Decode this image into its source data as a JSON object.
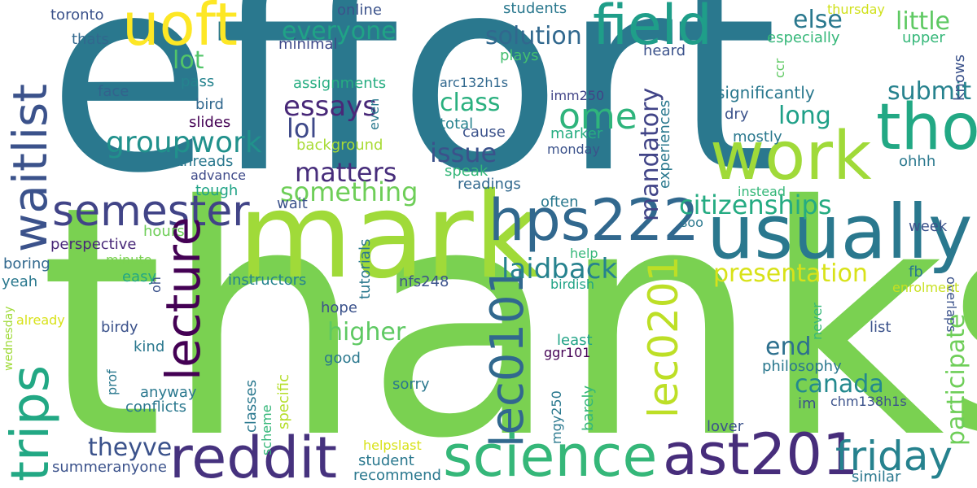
{
  "words": [
    {
      "text": "effort",
      "color": "#2a788e"
    },
    {
      "text": "thanks",
      "color": "#7ad151"
    },
    {
      "text": "mark",
      "color": "#a0da39"
    },
    {
      "text": "waitlist",
      "color": "#3b528b"
    },
    {
      "text": "uoft",
      "color": "#fde725"
    },
    {
      "text": "field",
      "color": "#1f9e89"
    },
    {
      "text": "tho",
      "color": "#22a884"
    },
    {
      "text": "work",
      "color": "#a0da39"
    },
    {
      "text": "usually",
      "color": "#2a788e"
    },
    {
      "text": "hps222",
      "color": "#31688e"
    },
    {
      "text": "semester",
      "color": "#414487"
    },
    {
      "text": "trips",
      "color": "#22a884"
    },
    {
      "text": "lecture",
      "color": "#440154"
    },
    {
      "text": "reddit",
      "color": "#46327e"
    },
    {
      "text": "science",
      "color": "#35b779"
    },
    {
      "text": "ast201",
      "color": "#472d7b"
    },
    {
      "text": "friday",
      "color": "#26828e"
    },
    {
      "text": "lec0101",
      "color": "#31688e"
    },
    {
      "text": "lec0201",
      "color": "#bddf26"
    },
    {
      "text": "citizenships",
      "color": "#25ab82"
    },
    {
      "text": "presentation",
      "color": "#d8e219"
    },
    {
      "text": "laidback",
      "color": "#26828e"
    },
    {
      "text": "groupwork",
      "color": "#21918c"
    },
    {
      "text": "essays",
      "color": "#482878"
    },
    {
      "text": "lol",
      "color": "#3e4989"
    },
    {
      "text": "matters",
      "color": "#472d7b"
    },
    {
      "text": "something",
      "color": "#6ece58"
    },
    {
      "text": "issue",
      "color": "#3b528b"
    },
    {
      "text": "class",
      "color": "#2ab07f"
    },
    {
      "text": "ome",
      "color": "#2fb47c"
    },
    {
      "text": "mandatory",
      "color": "#414487"
    },
    {
      "text": "solution",
      "color": "#31688e"
    },
    {
      "text": "everyone",
      "color": "#20a386"
    },
    {
      "text": "else",
      "color": "#2a788e"
    },
    {
      "text": "little",
      "color": "#5ec962"
    },
    {
      "text": "long",
      "color": "#1fa088"
    },
    {
      "text": "submit",
      "color": "#26828e"
    },
    {
      "text": "higher",
      "color": "#5ec962"
    },
    {
      "text": "end",
      "color": "#2d708e"
    },
    {
      "text": "canada",
      "color": "#23898e"
    },
    {
      "text": "participate",
      "color": "#6ece58"
    },
    {
      "text": "theyve",
      "color": "#3b528b"
    },
    {
      "text": "lot",
      "color": "#52c569"
    },
    {
      "text": "online",
      "color": "#3b528b"
    },
    {
      "text": "students",
      "color": "#2a788e"
    },
    {
      "text": "thursday",
      "color": "#d0e11c"
    },
    {
      "text": "toronto",
      "color": "#3b528b"
    },
    {
      "text": "thats",
      "color": "#31688e"
    },
    {
      "text": "minimal",
      "color": "#3e4989"
    },
    {
      "text": "especially",
      "color": "#35b779"
    },
    {
      "text": "upper",
      "color": "#35b779"
    },
    {
      "text": "plays",
      "color": "#44bf70"
    },
    {
      "text": "heard",
      "color": "#3b528b"
    },
    {
      "text": "ccr",
      "color": "#5ec962"
    },
    {
      "text": "knows",
      "color": "#3b528b"
    },
    {
      "text": "assignments",
      "color": "#26ad81"
    },
    {
      "text": "arc132h1s",
      "color": "#31688e"
    },
    {
      "text": "imm250",
      "color": "#414487"
    },
    {
      "text": "significantly",
      "color": "#2a788e"
    },
    {
      "text": "pass",
      "color": "#25838e"
    },
    {
      "text": "face",
      "color": "#33638d"
    },
    {
      "text": "bird",
      "color": "#31688e"
    },
    {
      "text": "slides",
      "color": "#440154"
    },
    {
      "text": "threads",
      "color": "#2a788e"
    },
    {
      "text": "advance",
      "color": "#3e4989"
    },
    {
      "text": "tough",
      "color": "#20a386"
    },
    {
      "text": "background",
      "color": "#a8db34"
    },
    {
      "text": "even",
      "color": "#2a788e"
    },
    {
      "text": "total",
      "color": "#26828e"
    },
    {
      "text": "cause",
      "color": "#3b528b"
    },
    {
      "text": "marker",
      "color": "#26ad81"
    },
    {
      "text": "monday",
      "color": "#3b528b"
    },
    {
      "text": "experiences",
      "color": "#2a788e"
    },
    {
      "text": "dry",
      "color": "#3b528b"
    },
    {
      "text": "mostly",
      "color": "#2a788e"
    },
    {
      "text": "ohhh",
      "color": "#2a788e"
    },
    {
      "text": "speak",
      "color": "#35b779"
    },
    {
      "text": "readings",
      "color": "#31688e"
    },
    {
      "text": "often",
      "color": "#2a788e"
    },
    {
      "text": "wait",
      "color": "#3b528b"
    },
    {
      "text": "hours",
      "color": "#6ece58"
    },
    {
      "text": "perspective",
      "color": "#482878"
    },
    {
      "text": "minute",
      "color": "#7ad151"
    },
    {
      "text": "boring",
      "color": "#31688e"
    },
    {
      "text": "easy",
      "color": "#22a884"
    },
    {
      "text": "yeah",
      "color": "#2a788e"
    },
    {
      "text": "instead",
      "color": "#35b779"
    },
    {
      "text": "week",
      "color": "#3b528b"
    },
    {
      "text": "overlaps",
      "color": "#3b528b"
    },
    {
      "text": "soo",
      "color": "#2a788e"
    },
    {
      "text": "fb",
      "color": "#2a788e"
    },
    {
      "text": "enrolment",
      "color": "#c8e020"
    },
    {
      "text": "help",
      "color": "#35b779"
    },
    {
      "text": "birdish",
      "color": "#20a386"
    },
    {
      "text": "instructors",
      "color": "#25838e"
    },
    {
      "text": "tutorials",
      "color": "#2a788e"
    },
    {
      "text": "oh",
      "color": "#3b528b"
    },
    {
      "text": "nfs248",
      "color": "#3b528b"
    },
    {
      "text": "hope",
      "color": "#3b528b"
    },
    {
      "text": "already",
      "color": "#d8e219"
    },
    {
      "text": "wednesday",
      "color": "#a0da39"
    },
    {
      "text": "birdy",
      "color": "#3b528b"
    },
    {
      "text": "kind",
      "color": "#2a788e"
    },
    {
      "text": "prof",
      "color": "#2a788e"
    },
    {
      "text": "anyway",
      "color": "#2a788e"
    },
    {
      "text": "conflicts",
      "color": "#2a788e"
    },
    {
      "text": "good",
      "color": "#2a788e"
    },
    {
      "text": "least",
      "color": "#20a386"
    },
    {
      "text": "ggr101",
      "color": "#440154"
    },
    {
      "text": "never",
      "color": "#35b779"
    },
    {
      "text": "philosophy",
      "color": "#2a788e"
    },
    {
      "text": "list",
      "color": "#3b528b"
    },
    {
      "text": "sorry",
      "color": "#2a788e"
    },
    {
      "text": "classes",
      "color": "#2a788e"
    },
    {
      "text": "specific",
      "color": "#b5de2b"
    },
    {
      "text": "scheme",
      "color": "#35b779"
    },
    {
      "text": "barely",
      "color": "#35b779"
    },
    {
      "text": "mgy250",
      "color": "#2a788e"
    },
    {
      "text": "im",
      "color": "#3b528b"
    },
    {
      "text": "chm138h1s",
      "color": "#3b528b"
    },
    {
      "text": "lover",
      "color": "#3b528b"
    },
    {
      "text": "helpslast",
      "color": "#d8e219"
    },
    {
      "text": "student",
      "color": "#2a788e"
    },
    {
      "text": "summeranyone",
      "color": "#3b528b"
    },
    {
      "text": "recommend",
      "color": "#2a788e"
    },
    {
      "text": "similar",
      "color": "#2a788e"
    }
  ]
}
